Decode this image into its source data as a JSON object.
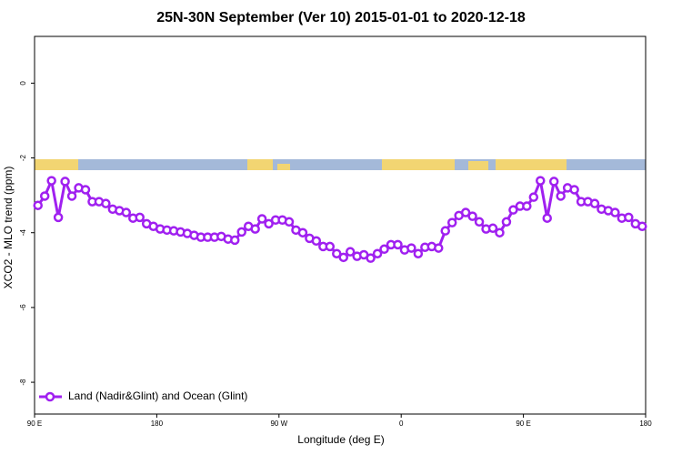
{
  "chart_data": {
    "type": "line",
    "title": "25N-30N September (Ver 10)   2015-01-01 to 2020-12-18",
    "x_label": "Longitude (deg E)",
    "y_label": "XCO2 - MLO trend (ppm)",
    "xlim": [
      90,
      540
    ],
    "xticks": [
      {
        "value": 90,
        "label": "90 E"
      },
      {
        "value": 180,
        "label": "180"
      },
      {
        "value": 270,
        "label": "90 W"
      },
      {
        "value": 360,
        "label": "0"
      },
      {
        "value": 450,
        "label": "90 E"
      },
      {
        "value": 540,
        "label": "180"
      }
    ],
    "ylim": [
      -8.85,
      1.25
    ],
    "yticks": [
      0,
      -2,
      -4,
      -6,
      -8
    ],
    "legend": "bottom-left",
    "x": [
      92.5,
      97.5,
      102.5,
      107.5,
      112.5,
      117.5,
      122.5,
      127.5,
      132.5,
      137.5,
      142.5,
      147.5,
      152.5,
      157.5,
      162.5,
      167.5,
      172.5,
      177.5,
      182.5,
      187.5,
      192.5,
      197.5,
      202.5,
      207.5,
      212.5,
      217.5,
      222.5,
      227.5,
      232.5,
      237.5,
      242.5,
      247.5,
      252.5,
      257.5,
      262.5,
      267.5,
      272.5,
      277.5,
      282.5,
      287.5,
      292.5,
      297.5,
      302.5,
      307.5,
      312.5,
      317.5,
      322.5,
      327.5,
      332.5,
      337.5,
      342.5,
      347.5,
      352.5,
      357.5,
      362.5,
      367.5,
      372.5,
      377.5,
      382.5,
      387.5,
      392.5,
      397.5,
      402.5,
      407.5,
      412.5,
      417.5,
      422.5,
      427.5,
      432.5,
      437.5,
      442.5,
      447.5,
      452.5,
      457.5,
      462.5,
      467.5,
      472.5,
      477.5,
      482.5,
      487.5,
      492.5,
      497.5,
      502.5,
      507.5,
      512.5,
      517.5,
      522.5,
      527.5,
      532.5,
      537.5
    ],
    "series": [
      {
        "name": "Land (Nadir&Glint) and Ocean (Glint)",
        "color": "#a020f0",
        "values": [
          -3.27,
          -3.02,
          -2.61,
          -3.59,
          -2.63,
          -3.02,
          -2.8,
          -2.85,
          -3.17,
          -3.17,
          -3.22,
          -3.37,
          -3.41,
          -3.46,
          -3.61,
          -3.59,
          -3.76,
          -3.83,
          -3.9,
          -3.93,
          -3.95,
          -3.98,
          -4.02,
          -4.07,
          -4.12,
          -4.12,
          -4.12,
          -4.1,
          -4.17,
          -4.2,
          -3.98,
          -3.83,
          -3.9,
          -3.63,
          -3.76,
          -3.66,
          -3.66,
          -3.71,
          -3.93,
          -4.0,
          -4.15,
          -4.22,
          -4.37,
          -4.37,
          -4.56,
          -4.66,
          -4.51,
          -4.63,
          -4.59,
          -4.68,
          -4.56,
          -4.44,
          -4.32,
          -4.32,
          -4.46,
          -4.41,
          -4.56,
          -4.39,
          -4.37,
          -4.41,
          -3.95,
          -3.73,
          -3.54,
          -3.46,
          -3.56,
          -3.71,
          -3.9,
          -3.88,
          -4.0,
          -3.71,
          -3.39,
          -3.29,
          -3.29,
          -3.05,
          -2.61,
          -3.61,
          -2.63,
          -3.02,
          -2.8,
          -2.85,
          -3.17,
          -3.17,
          -3.22,
          -3.37,
          -3.41,
          -3.46,
          -3.61,
          -3.59,
          -3.76,
          -3.83
        ]
      }
    ]
  }
}
